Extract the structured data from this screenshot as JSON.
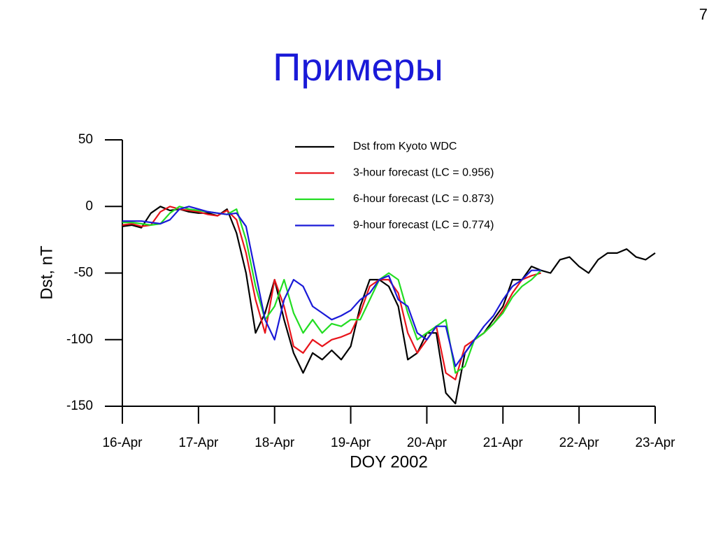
{
  "page_number": "7",
  "title": "Примеры",
  "chart_data": {
    "type": "line",
    "x_label": "DOY 2002",
    "y_label": "Dst, nT",
    "x": [
      16,
      16.125,
      16.25,
      16.375,
      16.5,
      16.625,
      16.75,
      16.875,
      17,
      17.125,
      17.25,
      17.375,
      17.5,
      17.625,
      17.75,
      17.875,
      18,
      18.125,
      18.25,
      18.375,
      18.5,
      18.625,
      18.75,
      18.875,
      19,
      19.125,
      19.25,
      19.375,
      19.5,
      19.625,
      19.75,
      19.875,
      20,
      20.125,
      20.25,
      20.375,
      20.5,
      20.625,
      20.75,
      20.875,
      21,
      21.125,
      21.25,
      21.375,
      21.5,
      21.625,
      21.75,
      21.875,
      22,
      22.125,
      22.25,
      22.375,
      22.5,
      22.625,
      22.75,
      22.875,
      23
    ],
    "series": [
      {
        "name": "Dst from Kyoto WDC",
        "color": "#000000",
        "values": [
          -15,
          -14,
          -16,
          -5,
          0,
          -3,
          -2,
          -4,
          -5,
          -5,
          -7,
          -2,
          -20,
          -50,
          -95,
          -80,
          -55,
          -85,
          -110,
          -125,
          -110,
          -115,
          -108,
          -115,
          -105,
          -75,
          -55,
          -55,
          -60,
          -75,
          -115,
          -110,
          -95,
          -95,
          -140,
          -148,
          -110,
          -100,
          -95,
          -85,
          -75,
          -55,
          -55,
          -45,
          -48,
          -50,
          -40,
          -38,
          -45,
          -50,
          -40,
          -35,
          -35,
          -32,
          -38,
          -40,
          -35
        ]
      },
      {
        "name": "3-hour forecast (LC = 0.956)",
        "color": "#e8141b",
        "values": [
          -14,
          -13,
          -15,
          -14,
          -4,
          0,
          -2,
          -3,
          -4,
          -6,
          -7,
          -3,
          -10,
          -35,
          -70,
          -95,
          -55,
          -75,
          -105,
          -110,
          -100,
          -105,
          -100,
          -98,
          -95,
          -80,
          -60,
          -55,
          -55,
          -65,
          -95,
          -110,
          -100,
          -90,
          -125,
          -130,
          -105,
          -100,
          -95,
          -88,
          -78,
          -65,
          -55,
          -52,
          -50,
          null,
          null,
          null,
          null,
          null,
          null,
          null,
          null,
          null,
          null,
          null,
          null
        ]
      },
      {
        "name": "6-hour forecast (LC = 0.873)",
        "color": "#22dd22",
        "values": [
          -12,
          -12,
          -13,
          -14,
          -13,
          -5,
          0,
          -2,
          -3,
          -4,
          -5,
          -6,
          -2,
          -25,
          -60,
          -85,
          -75,
          -55,
          -80,
          -95,
          -85,
          -95,
          -88,
          -90,
          -85,
          -85,
          -70,
          -55,
          -50,
          -55,
          -80,
          -100,
          -95,
          -90,
          -85,
          -125,
          -120,
          -100,
          -95,
          -88,
          -80,
          -68,
          -60,
          -55,
          -48,
          null,
          null,
          null,
          null,
          null,
          null,
          null,
          null,
          null,
          null,
          null,
          null
        ]
      },
      {
        "name": "9-hour forecast (LC = 0.774)",
        "color": "#1a1ad8",
        "values": [
          -11,
          -11,
          -11,
          -12,
          -13,
          -10,
          -2,
          0,
          -2,
          -4,
          -5,
          -6,
          -5,
          -15,
          -50,
          -85,
          -100,
          -70,
          -55,
          -60,
          -75,
          -80,
          -85,
          -82,
          -78,
          -70,
          -65,
          -55,
          -52,
          -70,
          -75,
          -95,
          -100,
          -90,
          -90,
          -120,
          -110,
          -100,
          -90,
          -82,
          -70,
          -60,
          -55,
          -48,
          -48,
          null,
          null,
          null,
          null,
          null,
          null,
          null,
          null,
          null,
          null,
          null,
          null
        ]
      }
    ],
    "xlim": [
      16,
      23
    ],
    "xticks": [
      {
        "value": 16,
        "label": "16-Apr"
      },
      {
        "value": 17,
        "label": "17-Apr"
      },
      {
        "value": 18,
        "label": "18-Apr"
      },
      {
        "value": 19,
        "label": "19-Apr"
      },
      {
        "value": 20,
        "label": "20-Apr"
      },
      {
        "value": 21,
        "label": "21-Apr"
      },
      {
        "value": 22,
        "label": "22-Apr"
      },
      {
        "value": 23,
        "label": "23-Apr"
      }
    ],
    "ylim": [
      -150,
      50
    ],
    "yticks": [
      50,
      0,
      -50,
      -100,
      -150
    ],
    "legend": "top"
  }
}
